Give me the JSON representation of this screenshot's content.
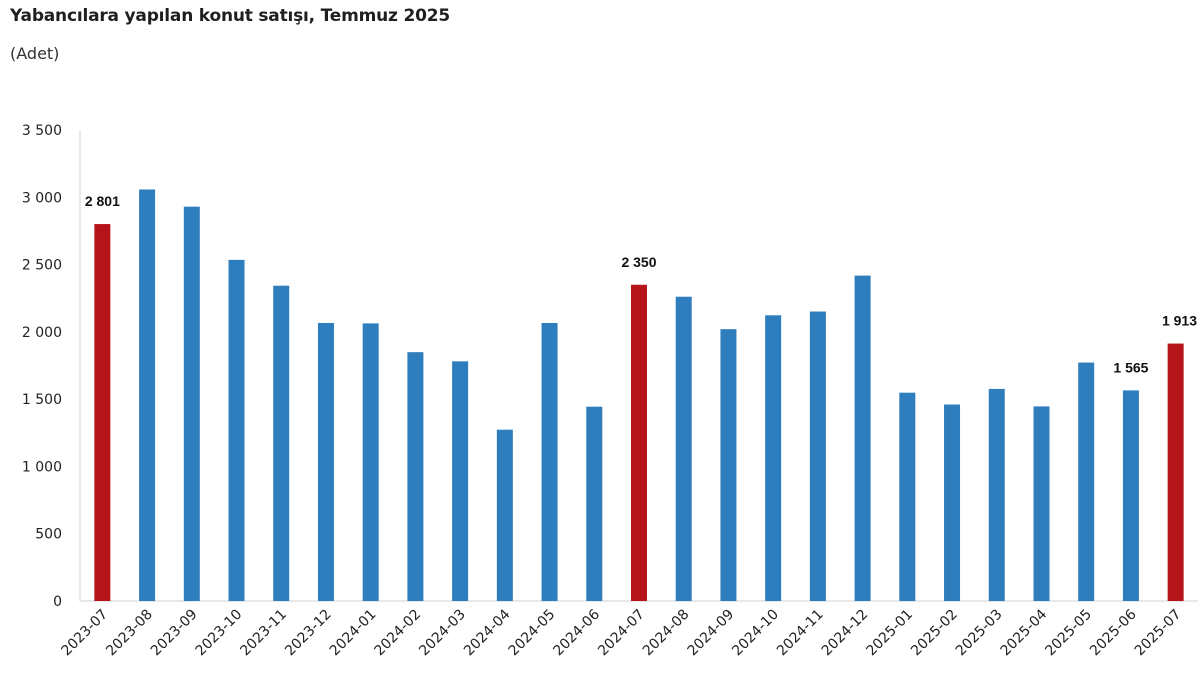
{
  "header": {
    "title": "Yabancılara yapılan konut satışı, Temmuz 2025",
    "subtitle": "(Adet)"
  },
  "chart_data": {
    "type": "bar",
    "title": "Yabancılara yapılan konut satışı, Temmuz 2025",
    "subtitle": "(Adet)",
    "xlabel": "",
    "ylabel": "",
    "ylim": [
      0,
      3500
    ],
    "yticks": [
      0,
      500,
      1000,
      1500,
      2000,
      2500,
      3000,
      3500
    ],
    "ytick_labels": [
      "0",
      "500",
      "1 000",
      "1 500",
      "2 000",
      "2 500",
      "3 000",
      "3 500"
    ],
    "grid": false,
    "categories": [
      "2023-07",
      "2023-08",
      "2023-09",
      "2023-10",
      "2023-11",
      "2023-12",
      "2024-01",
      "2024-02",
      "2024-03",
      "2024-04",
      "2024-05",
      "2024-06",
      "2024-07",
      "2024-08",
      "2024-09",
      "2024-10",
      "2024-11",
      "2024-12",
      "2025-01",
      "2025-02",
      "2025-03",
      "2025-04",
      "2025-05",
      "2025-06",
      "2025-07"
    ],
    "values": [
      2801,
      3058,
      2930,
      2535,
      2343,
      2066,
      2063,
      1849,
      1781,
      1273,
      2066,
      1444,
      2350,
      2261,
      2020,
      2123,
      2151,
      2418,
      1548,
      1460,
      1576,
      1446,
      1772,
      1565,
      1913
    ],
    "highlighted": [
      "2023-07",
      "2024-07",
      "2025-07"
    ],
    "data_labels": [
      {
        "category": "2023-07",
        "text": "2 801"
      },
      {
        "category": "2024-07",
        "text": "2 350"
      },
      {
        "category": "2025-06",
        "text": "1 565"
      },
      {
        "category": "2025-07",
        "text": "1 913"
      }
    ],
    "colors": {
      "default": "#2e7dbd",
      "highlight": "#b5141b",
      "axis": "#d0d0d0"
    }
  }
}
